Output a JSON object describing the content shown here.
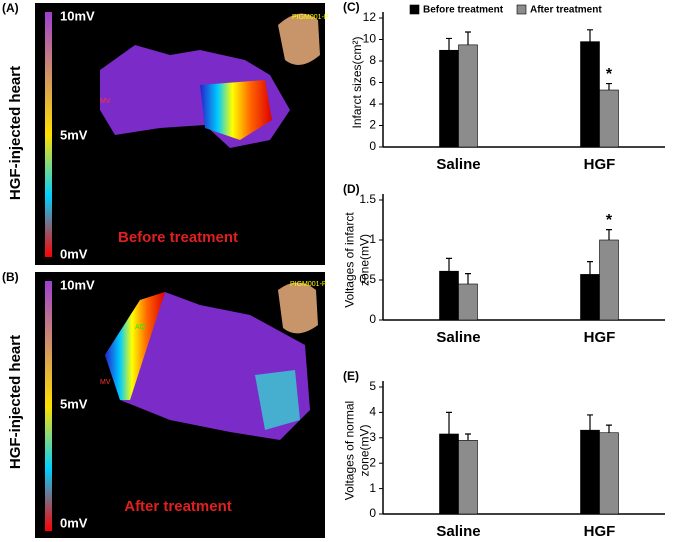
{
  "panels": [
    {
      "label": "(A)",
      "side_label": "HGF-injected heart",
      "scale": [
        "10mV",
        "5mV",
        "0mV"
      ],
      "caption": "Before treatment",
      "tags": [
        "MV",
        "PIGM001-P"
      ]
    },
    {
      "label": "(B)",
      "side_label": "HGF-injected heart",
      "scale": [
        "10mV",
        "5mV",
        "0mV"
      ],
      "caption": "After treatment",
      "tags": [
        "AO",
        "MV",
        "PIGM001-P"
      ]
    }
  ],
  "chart_data": [
    {
      "type": "bar",
      "panel": "(C)",
      "ylabel": [
        "Infarct sizes(cm²)"
      ],
      "categories": [
        "Saline",
        "HGF"
      ],
      "series": [
        {
          "name": "Before treatment",
          "color": "#000000",
          "values": [
            9.0,
            9.8
          ],
          "errors": [
            1.1,
            1.1
          ]
        },
        {
          "name": "After treatment",
          "color": "#8c8c8c",
          "values": [
            9.5,
            5.3
          ],
          "errors": [
            1.2,
            0.6
          ]
        }
      ],
      "legend": true,
      "annotations": [
        {
          "text": "*",
          "category": "HGF",
          "series": "After treatment"
        }
      ],
      "ylim": [
        0,
        12
      ],
      "yticks": [
        0,
        2,
        4,
        6,
        8,
        10,
        12
      ]
    },
    {
      "type": "bar",
      "panel": "(D)",
      "ylabel": [
        "Voltages of infarct",
        "zone(mV)"
      ],
      "categories": [
        "Saline",
        "HGF"
      ],
      "series": [
        {
          "name": "Before treatment",
          "color": "#000000",
          "values": [
            0.61,
            0.57
          ],
          "errors": [
            0.16,
            0.16
          ]
        },
        {
          "name": "After treatment",
          "color": "#8c8c8c",
          "values": [
            0.45,
            1.0
          ],
          "errors": [
            0.13,
            0.13
          ]
        }
      ],
      "legend": false,
      "annotations": [
        {
          "text": "*",
          "category": "HGF",
          "series": "After treatment"
        }
      ],
      "ylim": [
        0,
        1.5
      ],
      "yticks": [
        0,
        0.5,
        1,
        1.5
      ]
    },
    {
      "type": "bar",
      "panel": "(E)",
      "ylabel": [
        "Voltages of normal",
        "zone(mV)"
      ],
      "categories": [
        "Saline",
        "HGF"
      ],
      "series": [
        {
          "name": "Before treatment",
          "color": "#000000",
          "values": [
            3.15,
            3.3
          ],
          "errors": [
            0.85,
            0.6
          ]
        },
        {
          "name": "After treatment",
          "color": "#8c8c8c",
          "values": [
            2.9,
            3.2
          ],
          "errors": [
            0.25,
            0.3
          ]
        }
      ],
      "legend": false,
      "annotations": [],
      "ylim": [
        0,
        5
      ],
      "yticks": [
        0,
        1,
        2,
        3,
        4,
        5
      ]
    }
  ]
}
